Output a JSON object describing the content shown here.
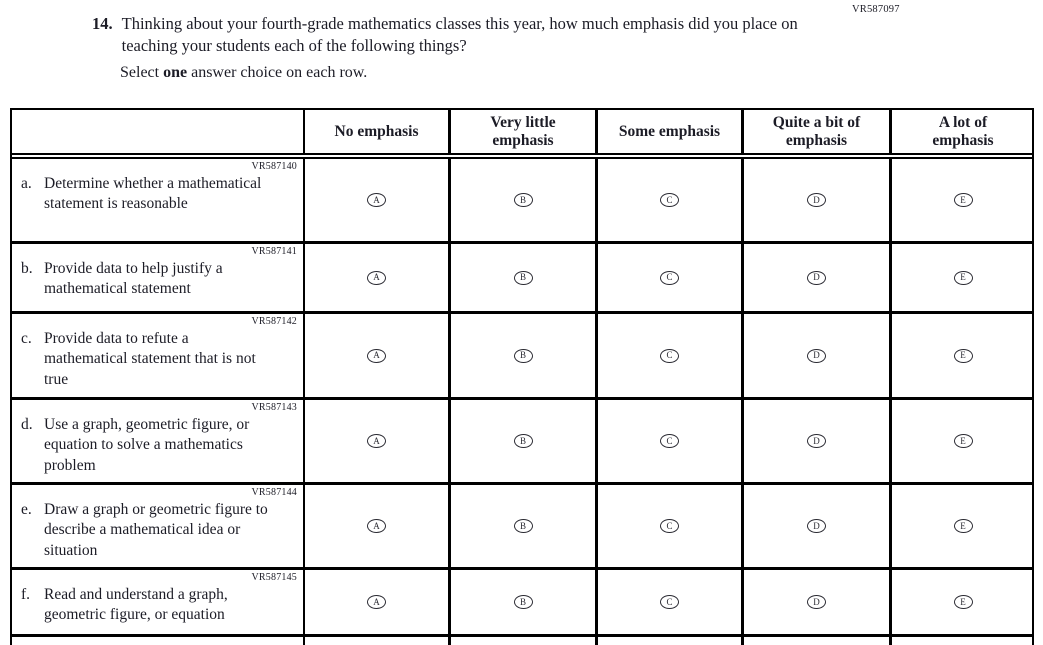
{
  "page": {
    "form_code": "VR587097",
    "question": {
      "number": "14.",
      "text": "Thinking about your fourth-grade mathematics classes this year, how much emphasis did you place on teaching your students each of the following things?",
      "instruction_prefix": "Select ",
      "instruction_bold": "one",
      "instruction_suffix": " answer choice on each row."
    }
  },
  "table": {
    "column_headers": [
      "No emphasis",
      "Very little\nemphasis",
      "Some emphasis",
      "Quite a bit of\nemphasis",
      "A lot of\nemphasis"
    ],
    "answer_options": [
      "A",
      "B",
      "C",
      "D",
      "E"
    ],
    "rows": [
      {
        "code": "VR587140",
        "letter": "a.",
        "text": "Determine whether a mathematical statement is reasonable"
      },
      {
        "code": "VR587141",
        "letter": "b.",
        "text": "Provide data to help justify a mathematical statement"
      },
      {
        "code": "VR587142",
        "letter": "c.",
        "text": "Provide data to refute a mathematical statement that is not true"
      },
      {
        "code": "VR587143",
        "letter": "d.",
        "text": "Use a graph, geometric figure, or equation to solve a mathematics problem"
      },
      {
        "code": "VR587144",
        "letter": "e.",
        "text": "Draw a graph or geometric figure to describe a mathematical idea or situation"
      },
      {
        "code": "VR587145",
        "letter": "f.",
        "text": "Read and understand a graph, geometric figure, or equation"
      }
    ]
  },
  "colors": {
    "text": "#1c1c26",
    "border": "#000000"
  }
}
